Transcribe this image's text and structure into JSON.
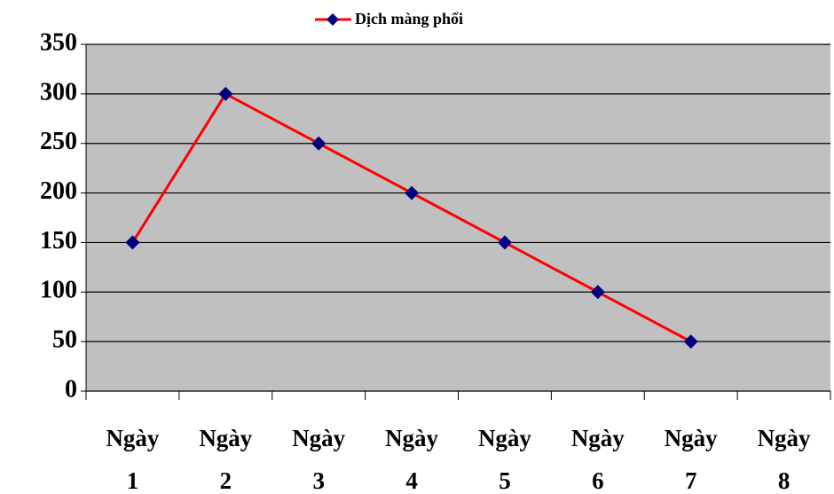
{
  "chart_data": {
    "type": "line",
    "categories": [
      "Ngày 1",
      "Ngày 2",
      "Ngày 3",
      "Ngày 4",
      "Ngày 5",
      "Ngày 6",
      "Ngày 7",
      "Ngày 8"
    ],
    "series": [
      {
        "name": "Dịch màng phổi",
        "color": "#ff0000",
        "marker_color": "#000080",
        "values": [
          150,
          300,
          250,
          200,
          150,
          100,
          50,
          null
        ]
      }
    ],
    "ylim": [
      0,
      350
    ],
    "yticks": [
      0,
      50,
      100,
      150,
      200,
      250,
      300,
      350
    ],
    "grid": true,
    "legend": "top",
    "plot_background": "#c0c0c0"
  }
}
